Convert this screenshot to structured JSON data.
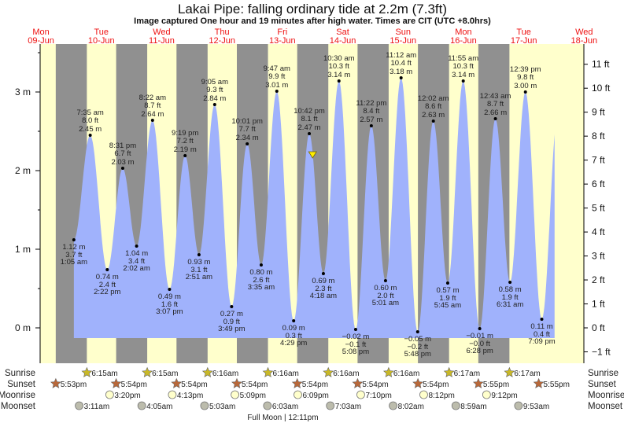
{
  "chart_data": {
    "type": "area",
    "title": "Lakai Pipe: falling  ordinary tide at 2.2m (7.3ft)",
    "subtitle": "Image captured One hour and 19 minutes after high water. Times are CIT (UTC +8.0hrs)",
    "days": [
      {
        "dow": "Mon",
        "date": "09-Jun"
      },
      {
        "dow": "Tue",
        "date": "10-Jun"
      },
      {
        "dow": "Wed",
        "date": "11-Jun"
      },
      {
        "dow": "Thu",
        "date": "12-Jun"
      },
      {
        "dow": "Fri",
        "date": "13-Jun"
      },
      {
        "dow": "Sat",
        "date": "14-Jun"
      },
      {
        "dow": "Sun",
        "date": "15-Jun"
      },
      {
        "dow": "Mon",
        "date": "16-Jun"
      },
      {
        "dow": "Tue",
        "date": "17-Jun"
      },
      {
        "dow": "Wed",
        "date": "18-Jun"
      }
    ],
    "y_left": {
      "unit": "m",
      "ticks": [
        "0 m",
        "1 m",
        "2 m",
        "3 m"
      ],
      "values": [
        0,
        1,
        2,
        3
      ]
    },
    "y_right": {
      "unit": "ft",
      "ticks": [
        "−1 ft",
        "0 ft",
        "1 ft",
        "2 ft",
        "3 ft",
        "4 ft",
        "5 ft",
        "6 ft",
        "7 ft",
        "8 ft",
        "9 ft",
        "10 ft",
        "11 ft"
      ],
      "values": [
        -1,
        0,
        1,
        2,
        3,
        4,
        5,
        6,
        7,
        8,
        9,
        10,
        11
      ]
    },
    "ylim_m": [
      -0.45,
      3.62
    ],
    "current": {
      "height_m": 2.2,
      "height_ft": 7.3,
      "state": "falling",
      "day": 5,
      "time": "12:01 am"
    },
    "extremes": [
      {
        "day": 1,
        "time": "1:05 am",
        "m": "1.12 m",
        "ft": "3.7 ft",
        "v": 1.12,
        "type": "low"
      },
      {
        "day": 1,
        "time": "7:35 am",
        "m": "2.45 m",
        "ft": "8.0 ft",
        "v": 2.45,
        "type": "high"
      },
      {
        "day": 1,
        "time": "2:22 pm",
        "m": "0.74 m",
        "ft": "2.4 ft",
        "v": 0.74,
        "type": "low"
      },
      {
        "day": 1,
        "time": "8:31 pm",
        "m": "2.03 m",
        "ft": "6.7 ft",
        "v": 2.03,
        "type": "high"
      },
      {
        "day": 2,
        "time": "2:02 am",
        "m": "1.04 m",
        "ft": "3.4 ft",
        "v": 1.04,
        "type": "low"
      },
      {
        "day": 2,
        "time": "8:22 am",
        "m": "2.64 m",
        "ft": "8.7 ft",
        "v": 2.64,
        "type": "high"
      },
      {
        "day": 2,
        "time": "3:07 pm",
        "m": "0.49 m",
        "ft": "1.6 ft",
        "v": 0.49,
        "type": "low"
      },
      {
        "day": 2,
        "time": "9:19 pm",
        "m": "2.19 m",
        "ft": "7.2 ft",
        "v": 2.19,
        "type": "high"
      },
      {
        "day": 3,
        "time": "2:51 am",
        "m": "0.93 m",
        "ft": "3.1 ft",
        "v": 0.93,
        "type": "low"
      },
      {
        "day": 3,
        "time": "9:05 am",
        "m": "2.84 m",
        "ft": "9.3 ft",
        "v": 2.84,
        "type": "high"
      },
      {
        "day": 3,
        "time": "3:49 pm",
        "m": "0.27 m",
        "ft": "0.9 ft",
        "v": 0.27,
        "type": "low"
      },
      {
        "day": 3,
        "time": "10:01 pm",
        "m": "2.34 m",
        "ft": "7.7 ft",
        "v": 2.34,
        "type": "high"
      },
      {
        "day": 4,
        "time": "3:35 am",
        "m": "0.80 m",
        "ft": "2.6 ft",
        "v": 0.8,
        "type": "low"
      },
      {
        "day": 4,
        "time": "9:47 am",
        "m": "3.01 m",
        "ft": "9.9 ft",
        "v": 3.01,
        "type": "high"
      },
      {
        "day": 4,
        "time": "4:29 pm",
        "m": "0.09 m",
        "ft": "0.3 ft",
        "v": 0.09,
        "type": "low"
      },
      {
        "day": 4,
        "time": "10:42 pm",
        "m": "2.47 m",
        "ft": "8.1 ft",
        "v": 2.47,
        "type": "high"
      },
      {
        "day": 5,
        "time": "4:18 am",
        "m": "0.69 m",
        "ft": "2.3 ft",
        "v": 0.69,
        "type": "low"
      },
      {
        "day": 5,
        "time": "10:30 am",
        "m": "3.14 m",
        "ft": "10.3 ft",
        "v": 3.14,
        "type": "high"
      },
      {
        "day": 5,
        "time": "5:08 pm",
        "m": "−0.02 m",
        "ft": "−0.1 ft",
        "v": -0.02,
        "type": "low"
      },
      {
        "day": 5,
        "time": "11:22 pm",
        "m": "2.57 m",
        "ft": "8.4 ft",
        "v": 2.57,
        "type": "high"
      },
      {
        "day": 6,
        "time": "5:01 am",
        "m": "0.60 m",
        "ft": "2.0 ft",
        "v": 0.6,
        "type": "low"
      },
      {
        "day": 6,
        "time": "11:12 am",
        "m": "3.18 m",
        "ft": "10.4 ft",
        "v": 3.18,
        "type": "high"
      },
      {
        "day": 6,
        "time": "5:48 pm",
        "m": "−0.05 m",
        "ft": "−0.2 ft",
        "v": -0.05,
        "type": "low"
      },
      {
        "day": 7,
        "time": "12:02 am",
        "m": "2.63 m",
        "ft": "8.6 ft",
        "v": 2.63,
        "type": "high"
      },
      {
        "day": 7,
        "time": "5:45 am",
        "m": "0.57 m",
        "ft": "1.9 ft",
        "v": 0.57,
        "type": "low"
      },
      {
        "day": 7,
        "time": "11:55 am",
        "m": "3.14 m",
        "ft": "10.3 ft",
        "v": 3.14,
        "type": "high"
      },
      {
        "day": 7,
        "time": "6:28 pm",
        "m": "−0.01 m",
        "ft": "−0.0 ft",
        "v": -0.01,
        "type": "low"
      },
      {
        "day": 8,
        "time": "12:43 am",
        "m": "2.66 m",
        "ft": "8.7 ft",
        "v": 2.66,
        "type": "high"
      },
      {
        "day": 8,
        "time": "6:31 am",
        "m": "0.58 m",
        "ft": "1.9 ft",
        "v": 0.58,
        "type": "low"
      },
      {
        "day": 8,
        "time": "12:39 pm",
        "m": "3.00 m",
        "ft": "9.8 ft",
        "v": 3.0,
        "type": "high"
      },
      {
        "day": 8,
        "time": "7:09 pm",
        "m": "0.11 m",
        "ft": "0.4 ft",
        "v": 0.11,
        "type": "low"
      }
    ],
    "rows": {
      "sunrise_label": "Sunrise",
      "sunset_label": "Sunset",
      "moonrise_label": "Moonrise",
      "moonset_label": "Moonset",
      "sunrise": [
        {
          "day": 1,
          "time": "6:15am"
        },
        {
          "day": 2,
          "time": "6:15am"
        },
        {
          "day": 3,
          "time": "6:16am"
        },
        {
          "day": 4,
          "time": "6:16am"
        },
        {
          "day": 5,
          "time": "6:16am"
        },
        {
          "day": 6,
          "time": "6:16am"
        },
        {
          "day": 7,
          "time": "6:17am"
        },
        {
          "day": 8,
          "time": "6:17am"
        }
      ],
      "sunset": [
        {
          "day": 0,
          "time": "5:53pm"
        },
        {
          "day": 1,
          "time": "5:54pm"
        },
        {
          "day": 2,
          "time": "5:54pm"
        },
        {
          "day": 3,
          "time": "5:54pm"
        },
        {
          "day": 4,
          "time": "5:54pm"
        },
        {
          "day": 5,
          "time": "5:54pm"
        },
        {
          "day": 6,
          "time": "5:54pm"
        },
        {
          "day": 7,
          "time": "5:55pm"
        },
        {
          "day": 8,
          "time": "5:55pm"
        }
      ],
      "moonrise": [
        {
          "day": 1,
          "time": "3:20pm"
        },
        {
          "day": 2,
          "time": "4:13pm"
        },
        {
          "day": 3,
          "time": "5:09pm"
        },
        {
          "day": 4,
          "time": "6:09pm"
        },
        {
          "day": 5,
          "time": "7:10pm"
        },
        {
          "day": 6,
          "time": "8:12pm"
        },
        {
          "day": 7,
          "time": "9:12pm"
        }
      ],
      "moonset": [
        {
          "day": 1,
          "time": "3:11am"
        },
        {
          "day": 2,
          "time": "4:05am"
        },
        {
          "day": 3,
          "time": "5:03am"
        },
        {
          "day": 4,
          "time": "6:03am"
        },
        {
          "day": 5,
          "time": "7:03am"
        },
        {
          "day": 6,
          "time": "8:02am"
        },
        {
          "day": 7,
          "time": "8:59am"
        },
        {
          "day": 8,
          "time": "9:53am"
        }
      ],
      "moon_phase": {
        "day": 4,
        "time": "12:11pm",
        "text": "Full Moon | 12:11pm"
      }
    },
    "colors": {
      "day": "#ffffcc",
      "night": "#909090",
      "water": "#a0b2fc",
      "daylabel": "#ee1111",
      "sunrise": "#c8b828",
      "sunset": "#b8683a",
      "moonrise": "#ffffcc",
      "moonset": "#bcbcac"
    }
  }
}
